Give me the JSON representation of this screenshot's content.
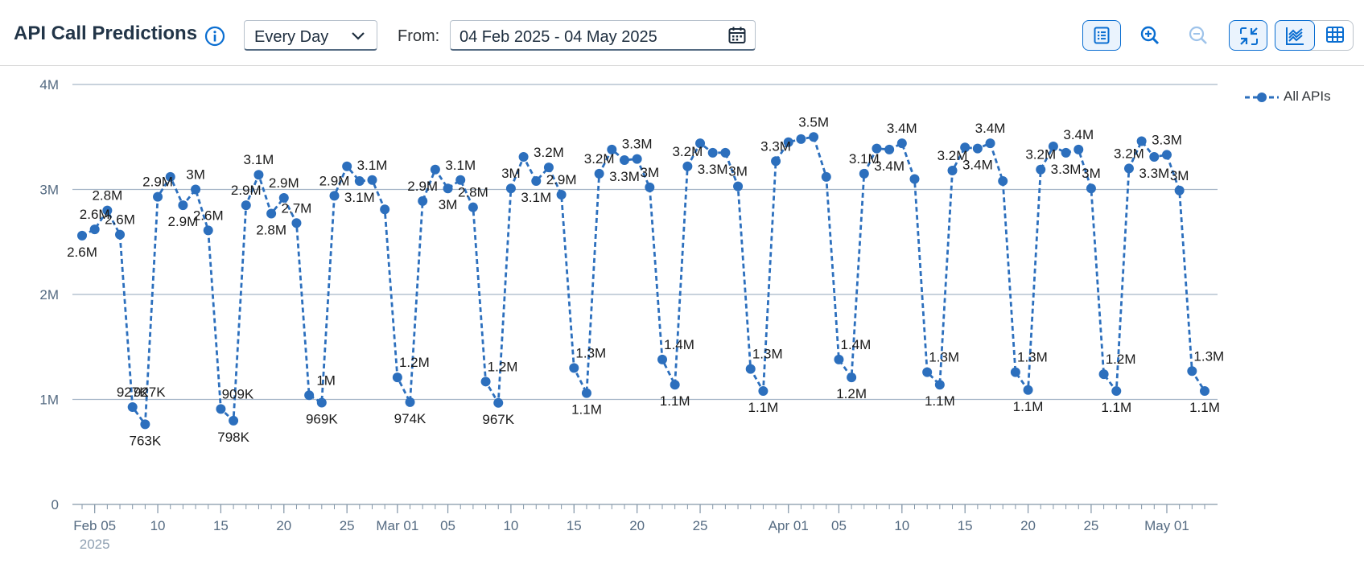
{
  "toolbar": {
    "title": "API Call Predictions",
    "period": "Every Day",
    "from_label": "From:",
    "date_range": "04 Feb 2025 - 04 May 2025",
    "icons": {
      "info": "info-icon",
      "calendar": "calendar-icon",
      "details": "details-icon",
      "zoom_in": "zoom-in-icon",
      "zoom_out": "zoom-out-icon",
      "collapse": "collapse-icon",
      "chart_view": "line-chart-icon",
      "table_view": "table-icon"
    }
  },
  "colors": {
    "series": "#2c6fbd",
    "grid": "#a6b6c8",
    "accent": "#0a6ed1"
  },
  "chart_data": {
    "type": "line",
    "x_start": "2025-02-04",
    "x_end": "2025-05-04",
    "ylim": [
      0,
      4000000
    ],
    "y_ticks": [
      {
        "value": 0,
        "label": "0"
      },
      {
        "value": 1000000,
        "label": "1M"
      },
      {
        "value": 2000000,
        "label": "2M"
      },
      {
        "value": 3000000,
        "label": "3M"
      },
      {
        "value": 4000000,
        "label": "4M"
      }
    ],
    "x_ticks": [
      {
        "date": "2025-02-05",
        "label": "Feb 05",
        "sub": "2025"
      },
      {
        "date": "2025-02-10",
        "label": "10"
      },
      {
        "date": "2025-02-15",
        "label": "15"
      },
      {
        "date": "2025-02-20",
        "label": "20"
      },
      {
        "date": "2025-02-25",
        "label": "25"
      },
      {
        "date": "2025-03-01",
        "label": "Mar 01"
      },
      {
        "date": "2025-03-05",
        "label": "05"
      },
      {
        "date": "2025-03-10",
        "label": "10"
      },
      {
        "date": "2025-03-15",
        "label": "15"
      },
      {
        "date": "2025-03-20",
        "label": "20"
      },
      {
        "date": "2025-03-25",
        "label": "25"
      },
      {
        "date": "2025-04-01",
        "label": "Apr 01"
      },
      {
        "date": "2025-04-05",
        "label": "05"
      },
      {
        "date": "2025-04-10",
        "label": "10"
      },
      {
        "date": "2025-04-15",
        "label": "15"
      },
      {
        "date": "2025-04-20",
        "label": "20"
      },
      {
        "date": "2025-04-25",
        "label": "25"
      },
      {
        "date": "2025-05-01",
        "label": "May 01"
      }
    ],
    "grid": true,
    "legend_position": "top-right",
    "series": [
      {
        "name": "All APIs",
        "points": [
          {
            "x": "2025-02-04",
            "y": 2560000,
            "label": "2.6M"
          },
          {
            "x": "2025-02-05",
            "y": 2620000,
            "label": "2.6M"
          },
          {
            "x": "2025-02-06",
            "y": 2800000,
            "label": "2.8M"
          },
          {
            "x": "2025-02-07",
            "y": 2570000,
            "label": "2.6M"
          },
          {
            "x": "2025-02-08",
            "y": 927000,
            "label": "927K"
          },
          {
            "x": "2025-02-09",
            "y": 763000,
            "label": "763K"
          },
          {
            "x": "2025-02-10",
            "y": 2930000,
            "label": "2.9M"
          },
          {
            "x": "2025-02-11",
            "y": 3120000
          },
          {
            "x": "2025-02-12",
            "y": 2850000,
            "label": "2.9M"
          },
          {
            "x": "2025-02-13",
            "y": 3000000,
            "label": "3M"
          },
          {
            "x": "2025-02-14",
            "y": 2610000,
            "label": "2.6M"
          },
          {
            "x": "2025-02-15",
            "y": 909000
          },
          {
            "x": "2025-02-16",
            "y": 798000,
            "label": "798K"
          },
          {
            "x": "2025-02-17",
            "y": 2850000,
            "label": "2.9M"
          },
          {
            "x": "2025-02-18",
            "y": 3140000,
            "label": "3.1M"
          },
          {
            "x": "2025-02-19",
            "y": 2770000,
            "label": "2.8M"
          },
          {
            "x": "2025-02-20",
            "y": 2920000,
            "label": "2.9M"
          },
          {
            "x": "2025-02-21",
            "y": 2680000,
            "label": "2.7M"
          },
          {
            "x": "2025-02-22",
            "y": 1040000
          },
          {
            "x": "2025-02-23",
            "y": 969000,
            "label": "969K"
          },
          {
            "x": "2025-02-24",
            "y": 2940000,
            "label": "2.9M"
          },
          {
            "x": "2025-02-25",
            "y": 3220000
          },
          {
            "x": "2025-02-26",
            "y": 3080000,
            "label": "3.1M"
          },
          {
            "x": "2025-02-27",
            "y": 3090000,
            "label": "3.1M"
          },
          {
            "x": "2025-02-28",
            "y": 2810000
          },
          {
            "x": "2025-03-01",
            "y": 1210000
          },
          {
            "x": "2025-03-02",
            "y": 974000,
            "label": "974K"
          },
          {
            "x": "2025-03-03",
            "y": 2890000,
            "label": "2.9M"
          },
          {
            "x": "2025-03-04",
            "y": 3190000
          },
          {
            "x": "2025-03-05",
            "y": 3010000,
            "label": "3M"
          },
          {
            "x": "2025-03-06",
            "y": 3090000,
            "label": "3.1M"
          },
          {
            "x": "2025-03-07",
            "y": 2830000,
            "label": "2.8M"
          },
          {
            "x": "2025-03-08",
            "y": 1170000
          },
          {
            "x": "2025-03-09",
            "y": 967000,
            "label": "967K"
          },
          {
            "x": "2025-03-10",
            "y": 3010000,
            "label": "3M"
          },
          {
            "x": "2025-03-11",
            "y": 3310000
          },
          {
            "x": "2025-03-12",
            "y": 3080000,
            "label": "3.1M"
          },
          {
            "x": "2025-03-13",
            "y": 3210000,
            "label": "3.2M"
          },
          {
            "x": "2025-03-14",
            "y": 2950000,
            "label": "2.9M"
          },
          {
            "x": "2025-03-15",
            "y": 1300000
          },
          {
            "x": "2025-03-16",
            "y": 1060000,
            "label": "1.1M"
          },
          {
            "x": "2025-03-17",
            "y": 3150000,
            "label": "3.2M"
          },
          {
            "x": "2025-03-18",
            "y": 3380000
          },
          {
            "x": "2025-03-19",
            "y": 3280000,
            "label": "3.3M"
          },
          {
            "x": "2025-03-20",
            "y": 3290000,
            "label": "3.3M"
          },
          {
            "x": "2025-03-21",
            "y": 3020000,
            "label": "3M"
          },
          {
            "x": "2025-03-22",
            "y": 1380000
          },
          {
            "x": "2025-03-23",
            "y": 1140000,
            "label": "1.1M"
          },
          {
            "x": "2025-03-24",
            "y": 3220000,
            "label": "3.2M"
          },
          {
            "x": "2025-03-25",
            "y": 3440000
          },
          {
            "x": "2025-03-26",
            "y": 3350000,
            "label": "3.3M"
          },
          {
            "x": "2025-03-27",
            "y": 3350000
          },
          {
            "x": "2025-03-28",
            "y": 3030000,
            "label": "3M"
          },
          {
            "x": "2025-03-29",
            "y": 1290000
          },
          {
            "x": "2025-03-30",
            "y": 1080000,
            "label": "1.1M"
          },
          {
            "x": "2025-03-31",
            "y": 3270000,
            "label": "3.3M"
          },
          {
            "x": "2025-04-01",
            "y": 3450000
          },
          {
            "x": "2025-04-02",
            "y": 3480000
          },
          {
            "x": "2025-04-03",
            "y": 3500000,
            "label": "3.5M"
          },
          {
            "x": "2025-04-04",
            "y": 3120000
          },
          {
            "x": "2025-04-05",
            "y": 1380000
          },
          {
            "x": "2025-04-06",
            "y": 1210000,
            "label": "1.2M"
          },
          {
            "x": "2025-04-07",
            "y": 3150000,
            "label": "3.1M"
          },
          {
            "x": "2025-04-08",
            "y": 3390000
          },
          {
            "x": "2025-04-09",
            "y": 3380000,
            "label": "3.4M"
          },
          {
            "x": "2025-04-10",
            "y": 3440000,
            "label": "3.4M"
          },
          {
            "x": "2025-04-11",
            "y": 3100000
          },
          {
            "x": "2025-04-12",
            "y": 1260000
          },
          {
            "x": "2025-04-13",
            "y": 1140000,
            "label": "1.1M"
          },
          {
            "x": "2025-04-14",
            "y": 3180000,
            "label": "3.2M"
          },
          {
            "x": "2025-04-15",
            "y": 3400000
          },
          {
            "x": "2025-04-16",
            "y": 3390000,
            "label": "3.4M"
          },
          {
            "x": "2025-04-17",
            "y": 3440000,
            "label": "3.4M"
          },
          {
            "x": "2025-04-18",
            "y": 3080000
          },
          {
            "x": "2025-04-19",
            "y": 1260000
          },
          {
            "x": "2025-04-20",
            "y": 1090000,
            "label": "1.1M"
          },
          {
            "x": "2025-04-21",
            "y": 3190000,
            "label": "3.2M"
          },
          {
            "x": "2025-04-22",
            "y": 3410000
          },
          {
            "x": "2025-04-23",
            "y": 3350000,
            "label": "3.3M"
          },
          {
            "x": "2025-04-24",
            "y": 3380000,
            "label": "3.4M"
          },
          {
            "x": "2025-04-25",
            "y": 3010000,
            "label": "3M"
          },
          {
            "x": "2025-04-26",
            "y": 1240000
          },
          {
            "x": "2025-04-27",
            "y": 1080000,
            "label": "1.1M"
          },
          {
            "x": "2025-04-28",
            "y": 3200000,
            "label": "3.2M"
          },
          {
            "x": "2025-04-29",
            "y": 3460000
          },
          {
            "x": "2025-04-30",
            "y": 3310000,
            "label": "3.3M"
          },
          {
            "x": "2025-05-01",
            "y": 3330000,
            "label": "3.3M"
          },
          {
            "x": "2025-05-02",
            "y": 2990000,
            "label": "3M"
          },
          {
            "x": "2025-05-03",
            "y": 1270000
          },
          {
            "x": "2025-05-04",
            "y": 1080000,
            "label": "1.1M"
          }
        ],
        "upper_labels": [
          {
            "x": "2025-02-08",
            "label": "927K"
          },
          {
            "x": "2025-02-15",
            "label": "909K"
          },
          {
            "x": "2025-02-22",
            "label": "1M"
          },
          {
            "x": "2025-03-01",
            "label": "1.2M"
          },
          {
            "x": "2025-03-08",
            "label": "1.2M"
          },
          {
            "x": "2025-03-15",
            "label": "1.3M"
          },
          {
            "x": "2025-03-22",
            "label": "1.4M"
          },
          {
            "x": "2025-03-29",
            "label": "1.3M"
          },
          {
            "x": "2025-04-05",
            "label": "1.4M"
          },
          {
            "x": "2025-04-12",
            "label": "1.3M"
          },
          {
            "x": "2025-04-19",
            "label": "1.3M"
          },
          {
            "x": "2025-04-26",
            "label": "1.2M"
          },
          {
            "x": "2025-05-03",
            "label": "1.3M"
          }
        ]
      }
    ]
  }
}
